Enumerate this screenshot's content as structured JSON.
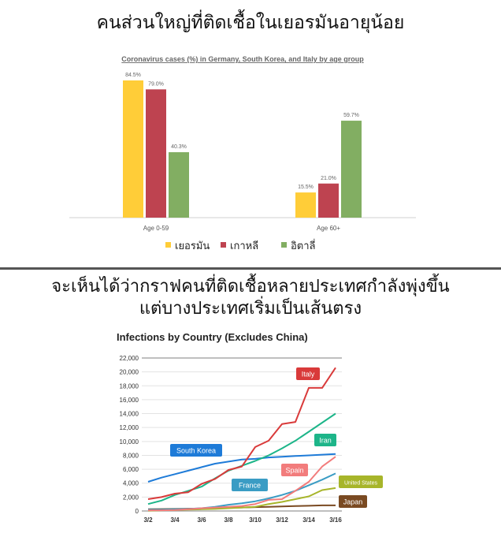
{
  "headings": {
    "top": "คนส่วนใหญ่ที่ติดเชื้อในเยอรมันอายุน้อย",
    "bottom_line1": "จะเห็นได้ว่ากราฟคนที่ติดเชื้อหลายประเทศกำลังพุ่งขึ้น",
    "bottom_line2": "แต่บางประเทศเริ่มเป็นเส้นตรง"
  },
  "chart_data": [
    {
      "type": "bar",
      "title": "Coronavirus cases (%) in Germany, South Korea, and Italy by age group",
      "categories": [
        "Age 0-59",
        "Age 60+"
      ],
      "series": [
        {
          "name": "เยอรมัน",
          "values": [
            84.5,
            15.5
          ],
          "labels": [
            "84.5%",
            "15.5%"
          ],
          "color": "#FFCD38"
        },
        {
          "name": "เกาหลี",
          "values": [
            79.0,
            21.0
          ],
          "labels": [
            "79.0%",
            "21.0%"
          ],
          "color": "#BE4350"
        },
        {
          "name": "อิตาลี่",
          "values": [
            40.3,
            59.7
          ],
          "labels": [
            "40.3%",
            "59.7%"
          ],
          "color": "#82AE62"
        }
      ],
      "ylim": [
        0,
        100
      ],
      "grid": false,
      "legend": "bottom"
    },
    {
      "type": "line",
      "title": "Infections by Country (Excludes China)",
      "x": [
        "3/2",
        "3/3",
        "3/4",
        "3/5",
        "3/6",
        "3/7",
        "3/8",
        "3/9",
        "3/10",
        "3/11",
        "3/12",
        "3/13",
        "3/14",
        "3/15",
        "3/16"
      ],
      "x_tick_labels": [
        "3/2",
        "3/4",
        "3/6",
        "3/8",
        "3/10",
        "3/12",
        "3/14",
        "3/16"
      ],
      "y_tick_labels": [
        "0",
        "2,000",
        "4,000",
        "6,000",
        "8,000",
        "10,000",
        "12,000",
        "14,000",
        "16,000",
        "18,000",
        "20,000",
        "22,000"
      ],
      "ylim": [
        0,
        22000
      ],
      "grid": true,
      "series": [
        {
          "name": "Italy",
          "color": "#D93A3A",
          "values": [
            1700,
            2000,
            2500,
            2700,
            3900,
            4600,
            5900,
            6400,
            9200,
            10100,
            12500,
            12800,
            17700,
            17700,
            20600
          ]
        },
        {
          "name": "Iran",
          "color": "#1DB589",
          "values": [
            1000,
            1500,
            2300,
            2900,
            3500,
            4700,
            5800,
            6500,
            7200,
            8000,
            9000,
            10100,
            11400,
            12700,
            14000
          ]
        },
        {
          "name": "South Korea",
          "color": "#1E7BD8",
          "values": [
            4200,
            4800,
            5300,
            5800,
            6300,
            6800,
            7100,
            7400,
            7500,
            7700,
            7800,
            7900,
            8000,
            8100,
            8200
          ]
        },
        {
          "name": "Spain",
          "color": "#F27C7C",
          "values": [
            100,
            100,
            150,
            250,
            400,
            500,
            600,
            700,
            1000,
            1600,
            1700,
            2900,
            4200,
            6400,
            7800
          ]
        },
        {
          "name": "France",
          "color": "#3A9CC4",
          "values": [
            200,
            200,
            250,
            300,
            400,
            600,
            900,
            1100,
            1400,
            1800,
            2300,
            2900,
            3700,
            4500,
            5400
          ]
        },
        {
          "name": "United States",
          "color": "#A7B52A",
          "values": [
            50,
            100,
            150,
            200,
            250,
            300,
            400,
            500,
            600,
            1000,
            1300,
            1700,
            2100,
            3000,
            3300
          ]
        },
        {
          "name": "Japan",
          "color": "#7A4A22",
          "values": [
            250,
            270,
            300,
            330,
            350,
            400,
            450,
            500,
            550,
            600,
            650,
            700,
            750,
            800,
            800
          ]
        }
      ]
    }
  ]
}
